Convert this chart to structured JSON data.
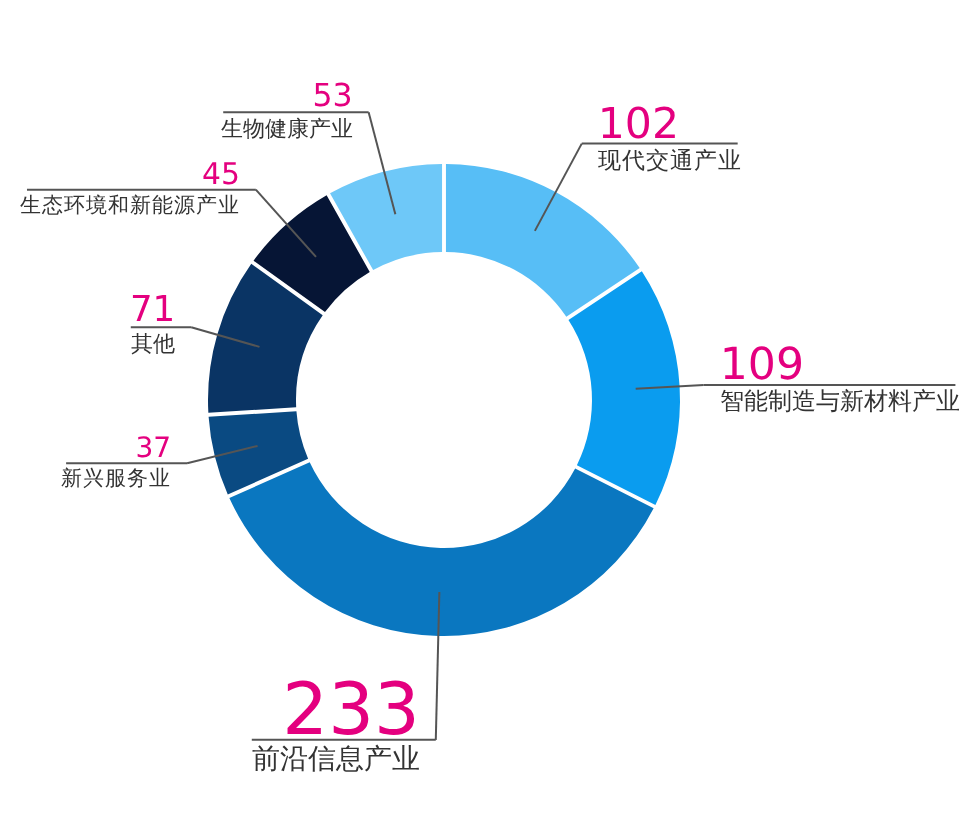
{
  "chart_data": {
    "type": "donut",
    "categories": [
      "现代交通产业",
      "智能制造与新材料产业",
      "前沿信息产业",
      "新兴服务业",
      "其他",
      "生态环境和新能源产业",
      "生物健康产业"
    ],
    "values": [
      102,
      109,
      233,
      37,
      71,
      45,
      53
    ],
    "colors": [
      "#57bef6",
      "#0a9cef",
      "#0a77c0",
      "#0a4a82",
      "#0a3464",
      "#061535",
      "#6ec8f8"
    ],
    "data_labels": true
  }
}
